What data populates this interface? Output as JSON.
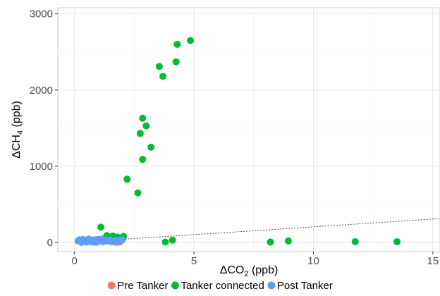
{
  "chart_data": {
    "type": "scatter",
    "title": "",
    "xlabel": {
      "prefix": "ΔCO",
      "sub": "2",
      "suffix": " (ppb)"
    },
    "ylabel": {
      "prefix": "ΔCH",
      "sub": "4",
      "suffix": " (ppb)"
    },
    "xlim": [
      -0.7,
      15.3
    ],
    "ylim": [
      -120,
      3080
    ],
    "x_ticks": [
      0,
      5,
      10,
      15
    ],
    "x_tick_labels": [
      "0",
      "5",
      "10",
      "15"
    ],
    "y_ticks": [
      0,
      1000,
      2000,
      3000
    ],
    "y_tick_labels": [
      "0",
      "1000",
      "2000",
      "3000"
    ],
    "grid": true,
    "legend_position": "bottom",
    "reference_line": {
      "style": "dotted",
      "slope": 20.5,
      "intercept": 0
    },
    "series": [
      {
        "name": "Pre Tanker",
        "color": "#F8766D",
        "points": [
          [
            1.8,
            2
          ],
          [
            1.9,
            6
          ],
          [
            1.6,
            10
          ],
          [
            1.7,
            4
          ]
        ]
      },
      {
        "name": "Tanker connected",
        "color": "#00BA38",
        "points": [
          [
            4.85,
            2650
          ],
          [
            4.3,
            2600
          ],
          [
            4.25,
            2370
          ],
          [
            3.55,
            2310
          ],
          [
            3.7,
            2180
          ],
          [
            2.85,
            1630
          ],
          [
            3.0,
            1530
          ],
          [
            2.75,
            1430
          ],
          [
            3.2,
            1250
          ],
          [
            2.85,
            1090
          ],
          [
            2.2,
            830
          ],
          [
            2.65,
            650
          ],
          [
            1.1,
            200
          ],
          [
            1.35,
            90
          ],
          [
            1.6,
            85
          ],
          [
            2.05,
            80
          ],
          [
            1.8,
            70
          ],
          [
            3.8,
            5
          ],
          [
            4.1,
            30
          ],
          [
            8.2,
            5
          ],
          [
            8.95,
            20
          ],
          [
            11.75,
            10
          ],
          [
            13.5,
            10
          ]
        ]
      },
      {
        "name": "Post Tanker",
        "color": "#619CFF",
        "points": [
          [
            0.15,
            20
          ],
          [
            0.2,
            35
          ],
          [
            0.25,
            10
          ],
          [
            0.3,
            25
          ],
          [
            0.35,
            40
          ],
          [
            0.4,
            15
          ],
          [
            0.45,
            30
          ],
          [
            0.5,
            5
          ],
          [
            0.55,
            25
          ],
          [
            0.6,
            35
          ],
          [
            0.65,
            15
          ],
          [
            0.7,
            30
          ],
          [
            0.75,
            5
          ],
          [
            0.8,
            20
          ],
          [
            0.85,
            35
          ],
          [
            0.9,
            10
          ],
          [
            0.95,
            25
          ],
          [
            1.0,
            40
          ],
          [
            1.05,
            15
          ],
          [
            1.1,
            30
          ],
          [
            1.2,
            10
          ],
          [
            1.25,
            25
          ],
          [
            1.3,
            35
          ],
          [
            1.4,
            20
          ],
          [
            1.5,
            30
          ],
          [
            1.55,
            10
          ],
          [
            1.65,
            25
          ],
          [
            1.75,
            15
          ],
          [
            1.85,
            30
          ],
          [
            1.95,
            20
          ],
          [
            2.0,
            35
          ],
          [
            0.3,
            0
          ],
          [
            0.6,
            45
          ],
          [
            0.9,
            0
          ],
          [
            1.15,
            45
          ]
        ]
      }
    ]
  }
}
